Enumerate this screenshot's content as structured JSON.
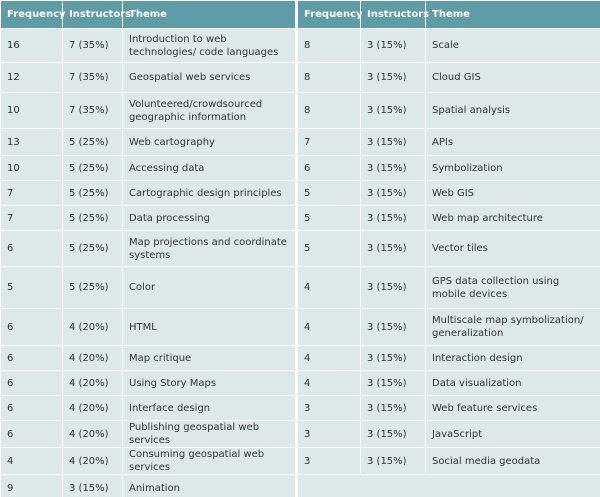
{
  "table": {
    "headers": [
      "Frequency",
      "Instructors",
      "Theme",
      "Frequency",
      "Instructors",
      "Theme"
    ],
    "rows": [
      [
        16,
        "7 (35%)",
        "Introduction to web technologies/ code languages",
        8,
        "3 (15%)",
        "Scale"
      ],
      [
        12,
        "7 (35%)",
        "Geospatial web services",
        8,
        "3 (15%)",
        "Cloud GIS"
      ],
      [
        10,
        "7 (35%)",
        "Volunteered/crowdsourced geographic information",
        8,
        "3 (15%)",
        "Spatial analysis"
      ],
      [
        13,
        "5 (25%)",
        "Web cartography",
        7,
        "3 (15%)",
        "APIs"
      ],
      [
        10,
        "5 (25%)",
        "Accessing data",
        6,
        "3 (15%)",
        "Symbolization"
      ],
      [
        7,
        "5 (25%)",
        "Cartographic design principles",
        5,
        "3 (15%)",
        "Web GIS"
      ],
      [
        7,
        "5 (25%)",
        "Data processing",
        5,
        "3 (15%)",
        "Web map architecture"
      ],
      [
        6,
        "5 (25%)",
        "Map projections and coordinate systems",
        5,
        "3 (15%)",
        "Vector tiles"
      ],
      [
        5,
        "5 (25%)",
        "Color",
        4,
        "3 (15%)",
        "GPS data collection using mobile devices"
      ],
      [
        6,
        "4 (20%)",
        "HTML",
        4,
        "3 (15%)",
        "Multiscale map symbolization/ generalization"
      ],
      [
        6,
        "4 (20%)",
        "Map critique",
        4,
        "3 (15%)",
        "Interaction design"
      ],
      [
        6,
        "4 (20%)",
        "Using Story Maps",
        4,
        "3 (15%)",
        "Data visualization"
      ],
      [
        6,
        "4 (20%)",
        "Interface design",
        3,
        "3 (15%)",
        "Web feature services"
      ],
      [
        6,
        "4 (20%)",
        "Publishing geospatial web services",
        3,
        "3 (15%)",
        "JavaScript"
      ],
      [
        4,
        "4 (20%)",
        "Consuming geospatial web services",
        3,
        "3 (15%)",
        "Social media geodata"
      ],
      [
        9,
        "3 (15%)",
        "Animation"
      ]
    ]
  }
}
